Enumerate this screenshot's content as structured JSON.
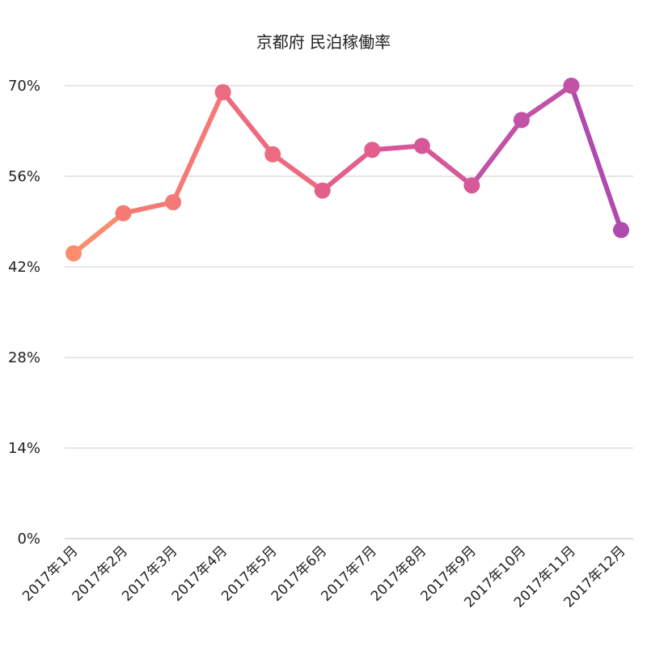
{
  "chart_data": {
    "type": "line",
    "title": "京都府 民泊稼働率",
    "xlabel": "",
    "ylabel": "",
    "categories": [
      "2017年1月",
      "2017年2月",
      "2017年3月",
      "2017年4月",
      "2017年5月",
      "2017年6月",
      "2017年7月",
      "2017年8月",
      "2017年9月",
      "2017年10月",
      "2017年11月",
      "2017年12月"
    ],
    "series": [
      {
        "values": [
          44.1,
          50.3,
          52.0,
          69.0,
          59.4,
          53.8,
          60.1,
          60.7,
          54.6,
          64.7,
          70.0,
          47.7
        ]
      }
    ],
    "ylim": [
      0,
      70
    ],
    "y_ticks": [
      "0%",
      "14%",
      "28%",
      "42%",
      "56%",
      "70%"
    ],
    "y_tick_values": [
      0,
      14,
      28,
      42,
      56,
      70
    ],
    "grid": true,
    "legend": "none",
    "colors": [
      "#fb8c6e",
      "#f57a76",
      "#ed6b81",
      "#e35e8d",
      "#d65899",
      "#c152a6",
      "#b04aaf"
    ]
  }
}
